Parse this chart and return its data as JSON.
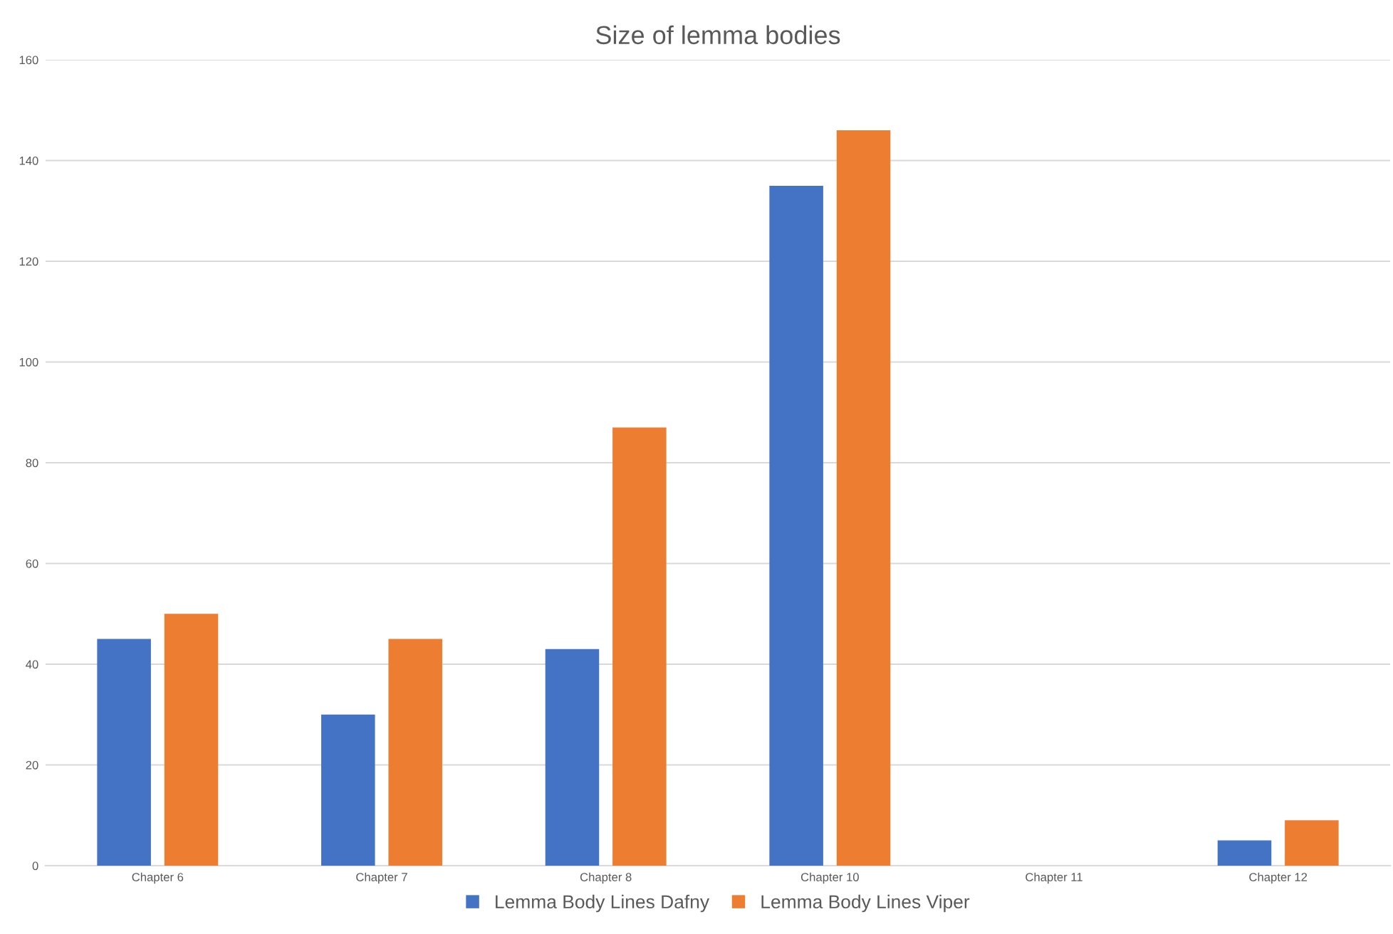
{
  "chart_data": {
    "type": "bar",
    "title": "Size of lemma bodies",
    "categories": [
      "Chapter 6",
      "Chapter 7",
      "Chapter 8",
      "Chapter 10",
      "Chapter 11",
      "Chapter 12"
    ],
    "series": [
      {
        "name": "Lemma Body Lines Dafny",
        "color": "#4472c4",
        "values": [
          45,
          30,
          43,
          135,
          0,
          5
        ]
      },
      {
        "name": "Lemma Body Lines Viper",
        "color": "#ed7d31",
        "values": [
          50,
          45,
          87,
          146,
          0,
          9
        ]
      }
    ],
    "ylim": [
      0,
      160
    ],
    "yticks": [
      0,
      20,
      40,
      60,
      80,
      100,
      120,
      140,
      160
    ],
    "grid": "y",
    "legend": "bottom"
  }
}
